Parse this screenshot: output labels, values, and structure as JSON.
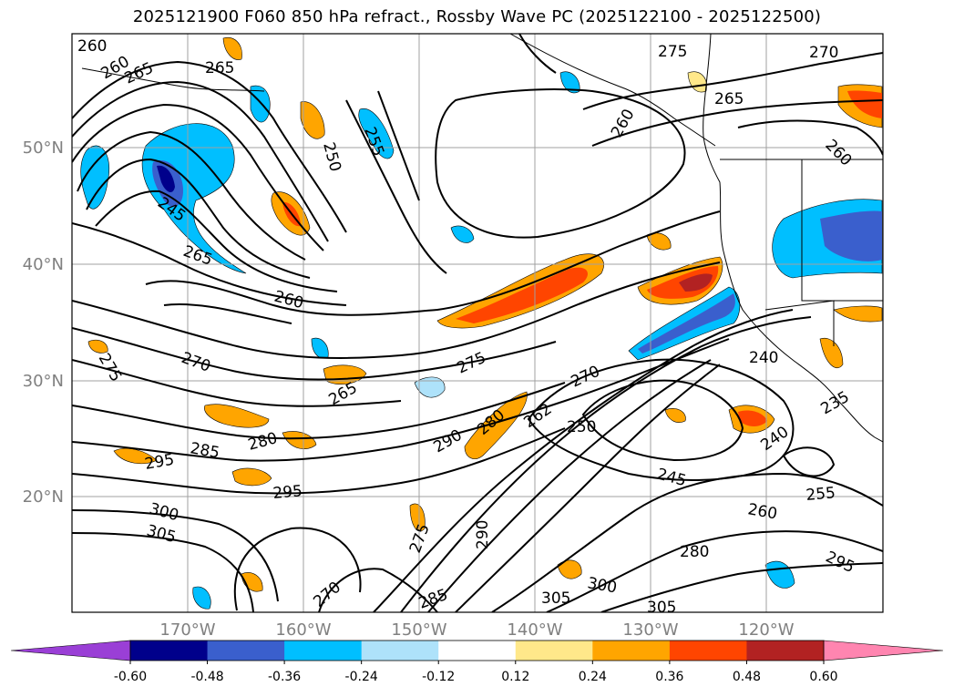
{
  "title": "2025121900 F060 850 hPa refract., Rossby Wave PC (2025122100 - 2025122500)",
  "lat_labels": [
    "50°N",
    "40°N",
    "30°N",
    "20°N"
  ],
  "lon_labels": [
    "170°W",
    "160°W",
    "150°W",
    "140°W",
    "130°W",
    "120°W"
  ],
  "contour_labels": [
    "260",
    "260",
    "265",
    "265",
    "250",
    "255",
    "275",
    "270",
    "265",
    "260",
    "260",
    "245",
    "265",
    "260",
    "270",
    "275",
    "275",
    "265",
    "270",
    "262",
    "280",
    "290",
    "250",
    "240",
    "235",
    "240",
    "245",
    "255",
    "260",
    "280",
    "285",
    "280",
    "295",
    "295",
    "300",
    "305",
    "270",
    "275",
    "290",
    "285",
    "300",
    "305",
    "305",
    "295"
  ],
  "colorbar": {
    "ticks": [
      "-0.60",
      "-0.48",
      "-0.36",
      "-0.24",
      "-0.12",
      "0.12",
      "0.24",
      "0.36",
      "0.48",
      "0.60"
    ],
    "colors": {
      "under": "#9a3fd6",
      "bins": [
        "#00008b",
        "#3a5fcd",
        "#00bfff",
        "#aee2fa",
        "#ffffff",
        "#ffe88a",
        "#ffa500",
        "#ff4500",
        "#b22222"
      ],
      "over": "#ff85b0"
    },
    "first_color": "#9932cc"
  }
}
